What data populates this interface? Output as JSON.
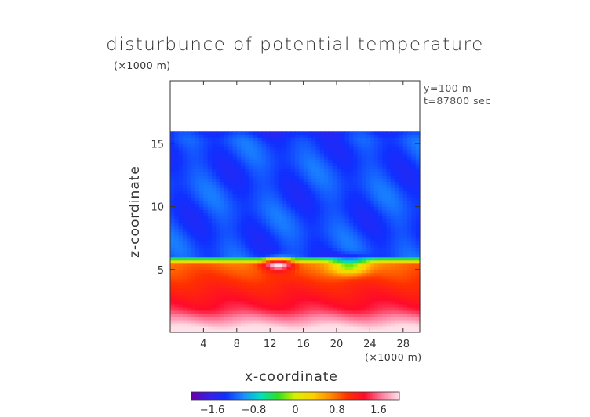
{
  "chart_data": {
    "type": "heatmap",
    "title": "disturbunce of potential temperature",
    "y_scale_note": "(×1000 m)",
    "x_scale_note": "(×1000 m)",
    "info_lines": [
      "y=100 m",
      "t=87800 sec"
    ],
    "xlabel": "x-coordinate",
    "ylabel": "z-coordinate",
    "xlim": [
      0,
      30
    ],
    "ylim": [
      0,
      20
    ],
    "x_ticks": [
      4,
      8,
      12,
      16,
      20,
      24,
      28
    ],
    "y_ticks": [
      5,
      10,
      15
    ],
    "data_top_km": 16,
    "colorbar": {
      "range": [
        -2.0,
        2.0
      ],
      "ticks": [
        -1.6,
        -0.8,
        0,
        0.8,
        1.6
      ],
      "tick_labels": [
        "−1.6",
        "−0.8",
        "0",
        "0.8",
        "1.6"
      ],
      "colors": [
        "#6a00a8",
        "#3a1ee8",
        "#1030ff",
        "#1a8cff",
        "#00e0c0",
        "#30e020",
        "#d8f000",
        "#ffd000",
        "#ff8c00",
        "#ff3000",
        "#ff0a2a",
        "#ff80a0",
        "#ffe0e8"
      ]
    },
    "features": [
      {
        "name": "cold upper layer",
        "z_range_km": [
          6,
          16
        ],
        "value": -1.3
      },
      {
        "name": "inversion band",
        "z_km": 6,
        "value": 0
      },
      {
        "name": "warm lower layer",
        "z_range_km": [
          0,
          5.5
        ],
        "value": 1.4
      },
      {
        "name": "warm bubble",
        "x_km": 13,
        "z_km": 5.5,
        "value": 1.9
      },
      {
        "name": "cold intrusion",
        "x_km": 22,
        "z_km": 5.5,
        "value": -0.2
      }
    ]
  }
}
